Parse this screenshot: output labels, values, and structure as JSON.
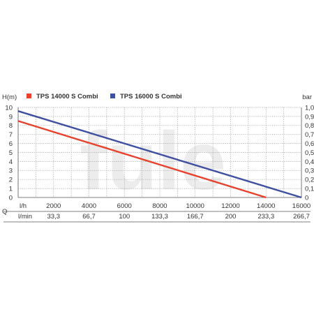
{
  "chart_data": {
    "type": "line",
    "left_axis_label": "H(m)",
    "right_axis_label": "bar",
    "q_label": "Q",
    "row1_unit": "l/h",
    "row2_unit": "l/min",
    "watermark": "fule",
    "left_ticks": [
      "10",
      "9",
      "8",
      "7",
      "6",
      "5",
      "4",
      "3",
      "2",
      "1",
      "0"
    ],
    "right_ticks": [
      "1,0",
      "0,9",
      "0,8",
      "0,7",
      "0,6",
      "0,5",
      "0,4",
      "0,3",
      "0,2",
      "0,1",
      "0"
    ],
    "row1_ticks": [
      "2000",
      "4000",
      "6000",
      "8000",
      "10000",
      "12000",
      "14000",
      "16000"
    ],
    "row2_ticks": [
      "33,3",
      "66,7",
      "100",
      "133,3",
      "166,7",
      "200",
      "233,3",
      "266,7"
    ],
    "xlim": [
      0,
      16000
    ],
    "ylim": [
      0,
      10
    ],
    "grid": true,
    "legend_position": "top",
    "series": [
      {
        "name": "TPS 14000 S Combi",
        "color": "#e8412c",
        "points": [
          [
            0,
            8.5
          ],
          [
            14000,
            0
          ]
        ]
      },
      {
        "name": "TPS 16000 S Combi",
        "color": "#3f4fa0",
        "points": [
          [
            0,
            9.6
          ],
          [
            16000,
            0
          ]
        ]
      }
    ]
  }
}
